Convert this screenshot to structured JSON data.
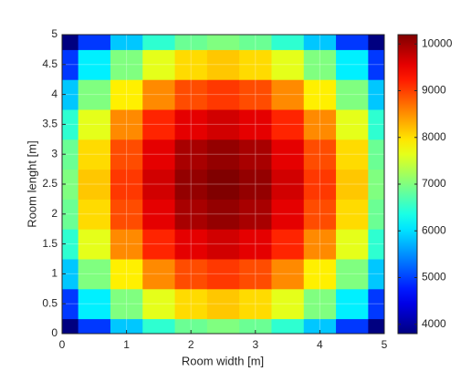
{
  "chart_data": {
    "type": "heatmap",
    "xlabel": "Room width [m]",
    "ylabel": "Room lenght [m]",
    "x": [
      0,
      0.5,
      1,
      1.5,
      2,
      2.5,
      3,
      3.5,
      4,
      4.5,
      5
    ],
    "y": [
      0,
      0.5,
      1,
      1.5,
      2,
      2.5,
      3,
      3.5,
      4,
      4.5,
      5
    ],
    "z": [
      [
        3800,
        4952,
        5848,
        6488,
        6872,
        7000,
        6872,
        6488,
        5848,
        4952,
        3800
      ],
      [
        4952,
        6104,
        7000,
        7640,
        8024,
        8152,
        8024,
        7640,
        7000,
        6104,
        4952
      ],
      [
        5848,
        7000,
        7896,
        8536,
        8920,
        9048,
        8920,
        8536,
        7896,
        7000,
        5848
      ],
      [
        6488,
        7640,
        8536,
        9176,
        9560,
        9688,
        9560,
        9176,
        8536,
        7640,
        6488
      ],
      [
        6872,
        8024,
        8920,
        9560,
        9944,
        10072,
        9944,
        9560,
        8920,
        8024,
        6872
      ],
      [
        7000,
        8152,
        9048,
        9688,
        10072,
        10200,
        10072,
        9688,
        9048,
        8152,
        7000
      ],
      [
        6872,
        8024,
        8920,
        9560,
        9944,
        10072,
        9944,
        9560,
        8920,
        8024,
        6872
      ],
      [
        6488,
        7640,
        8536,
        9176,
        9560,
        9688,
        9560,
        9176,
        8536,
        7640,
        6488
      ],
      [
        5848,
        7000,
        7896,
        8536,
        8920,
        9048,
        8920,
        8536,
        7896,
        7000,
        5848
      ],
      [
        4952,
        6104,
        7000,
        7640,
        8024,
        8152,
        8024,
        7640,
        7000,
        6104,
        4952
      ],
      [
        3800,
        4952,
        5848,
        6488,
        6872,
        7000,
        6872,
        6488,
        5848,
        4952,
        3800
      ]
    ],
    "xlim": [
      0,
      5
    ],
    "ylim": [
      0,
      5
    ],
    "xticks": [
      0,
      1,
      2,
      3,
      4,
      5
    ],
    "yticks": [
      0,
      0.5,
      1,
      1.5,
      2,
      2.5,
      3,
      3.5,
      4,
      4.5,
      5
    ],
    "clim": [
      3800,
      10200
    ],
    "cticks": [
      4000,
      5000,
      6000,
      7000,
      8000,
      9000,
      10000
    ],
    "colormap": "jet",
    "grid": true
  }
}
